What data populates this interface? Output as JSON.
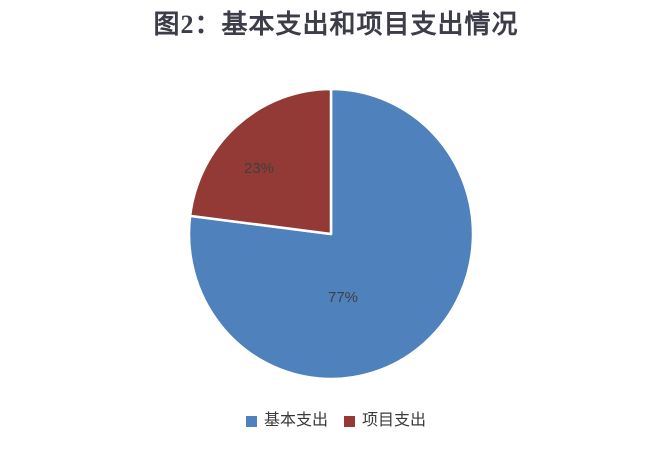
{
  "title": "图2：基本支出和项目支出情况",
  "colors": {
    "background": "#ffffff",
    "title_text": "#3d3d49",
    "data_label_text": "#3f3f3f",
    "legend_text": "#3a3a3a",
    "slice_blue": "#4f81bd",
    "slice_red": "#943a36",
    "slice_border": "#ffffff"
  },
  "chart_data": {
    "type": "pie",
    "title": "图2：基本支出和项目支出情况",
    "categories": [
      "基本支出",
      "项目支出"
    ],
    "values": [
      77,
      23
    ],
    "unit": "%",
    "data_labels": [
      "77%",
      "23%"
    ],
    "slice_colors": [
      "#4f81bd",
      "#943a36"
    ],
    "start_angle_deg": 0,
    "direction": "clockwise",
    "legend_position": "bottom",
    "grid": false
  },
  "legend": {
    "items": [
      {
        "label": "基本支出",
        "color": "#4f81bd"
      },
      {
        "label": "项目支出",
        "color": "#943a36"
      }
    ]
  }
}
